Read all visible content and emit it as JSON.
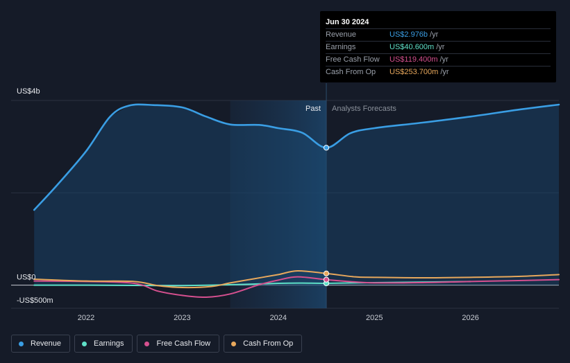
{
  "tooltip": {
    "date": "Jun 30 2024",
    "rows": [
      {
        "label": "Revenue",
        "value": "US$2.976b",
        "unit": "/yr",
        "color": "#3a9ee4"
      },
      {
        "label": "Earnings",
        "value": "US$40.600m",
        "unit": "/yr",
        "color": "#5fe0c8"
      },
      {
        "label": "Free Cash Flow",
        "value": "US$119.400m",
        "unit": "/yr",
        "color": "#d6508f"
      },
      {
        "label": "Cash From Op",
        "value": "US$253.700m",
        "unit": "/yr",
        "color": "#e8a85c"
      }
    ]
  },
  "legend": [
    {
      "label": "Revenue",
      "color": "#3a9ee4"
    },
    {
      "label": "Earnings",
      "color": "#5fe0c8"
    },
    {
      "label": "Free Cash Flow",
      "color": "#d6508f"
    },
    {
      "label": "Cash From Op",
      "color": "#e8a85c"
    }
  ],
  "chart_data": {
    "type": "area",
    "y_axis_labels": [
      "US$4b",
      "US$0",
      "-US$500m"
    ],
    "ylim": [
      -500,
      4000
    ],
    "x_ticks": [
      "2022",
      "2023",
      "2024",
      "2025",
      "2026"
    ],
    "x_tick_values": [
      2022,
      2023,
      2024,
      2025,
      2026
    ],
    "xlim": [
      2021.22,
      2026.92
    ],
    "past_label": "Past",
    "forecast_label": "Analysts Forecasts",
    "highlight_start": 2023.5,
    "divider": 2024.5,
    "grid": true,
    "series": [
      {
        "name": "Revenue",
        "color": "#3a9ee4",
        "points": [
          [
            2021.46,
            1630
          ],
          [
            2021.7,
            2170
          ],
          [
            2022.0,
            2900
          ],
          [
            2022.25,
            3650
          ],
          [
            2022.45,
            3890
          ],
          [
            2022.7,
            3900
          ],
          [
            2023.0,
            3850
          ],
          [
            2023.25,
            3650
          ],
          [
            2023.5,
            3480
          ],
          [
            2023.8,
            3470
          ],
          [
            2024.0,
            3400
          ],
          [
            2024.25,
            3300
          ],
          [
            2024.5,
            2976
          ],
          [
            2024.75,
            3290
          ],
          [
            2025.0,
            3400
          ],
          [
            2025.5,
            3520
          ],
          [
            2026.0,
            3650
          ],
          [
            2026.5,
            3800
          ],
          [
            2026.92,
            3910
          ]
        ],
        "marker": [
          2024.5,
          2976
        ]
      },
      {
        "name": "Earnings",
        "color": "#5fe0c8",
        "points": [
          [
            2021.46,
            0
          ],
          [
            2022.0,
            0
          ],
          [
            2022.5,
            -5
          ],
          [
            2023.0,
            -10
          ],
          [
            2023.5,
            10
          ],
          [
            2024.0,
            40
          ],
          [
            2024.25,
            45
          ],
          [
            2024.5,
            40.6
          ],
          [
            2025.0,
            55
          ],
          [
            2026.0,
            80
          ]
        ],
        "marker": [
          2024.5,
          40.6
        ]
      },
      {
        "name": "Free Cash Flow",
        "color": "#d6508f",
        "points": [
          [
            2021.46,
            90
          ],
          [
            2022.0,
            80
          ],
          [
            2022.5,
            40
          ],
          [
            2022.75,
            -130
          ],
          [
            2023.0,
            -220
          ],
          [
            2023.25,
            -260
          ],
          [
            2023.5,
            -190
          ],
          [
            2023.8,
            10
          ],
          [
            2024.0,
            110
          ],
          [
            2024.2,
            180
          ],
          [
            2024.5,
            119.4
          ],
          [
            2024.8,
            70
          ],
          [
            2025.0,
            50
          ],
          [
            2025.5,
            55
          ],
          [
            2026.0,
            80
          ],
          [
            2026.5,
            100
          ],
          [
            2026.92,
            120
          ]
        ],
        "marker": [
          2024.5,
          119.4
        ]
      },
      {
        "name": "Cash From Op",
        "color": "#e8a85c",
        "points": [
          [
            2021.46,
            130
          ],
          [
            2022.0,
            90
          ],
          [
            2022.5,
            80
          ],
          [
            2022.75,
            -10
          ],
          [
            2023.0,
            -50
          ],
          [
            2023.3,
            -30
          ],
          [
            2023.5,
            50
          ],
          [
            2023.75,
            140
          ],
          [
            2024.0,
            230
          ],
          [
            2024.2,
            310
          ],
          [
            2024.5,
            253.7
          ],
          [
            2024.8,
            180
          ],
          [
            2025.0,
            170
          ],
          [
            2025.5,
            160
          ],
          [
            2026.0,
            170
          ],
          [
            2026.5,
            190
          ],
          [
            2026.92,
            230
          ]
        ],
        "marker": [
          2024.5,
          253.7
        ]
      }
    ]
  }
}
